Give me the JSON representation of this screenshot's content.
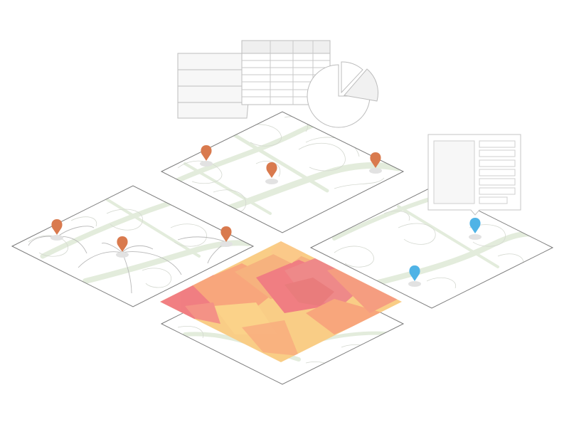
{
  "colors": {
    "background": "#ffffff",
    "tile_stroke": "#7a7a7a",
    "contour": "#d4d8d0",
    "road": "#e3ecdc",
    "pin_orange": "#d97a4e",
    "pin_blue": "#4fb3e6",
    "pin_shadow": "#e2e2e2",
    "heat_low": "#f9cd86",
    "heat_mid": "#f8a47c",
    "heat_high": "#f07a82",
    "heat_peak": "#e8787c",
    "chart_stroke": "#bdbdbd",
    "chart_fill": "#f5f5f5"
  },
  "icons": {
    "pin": "map-pin-icon",
    "table": "table-icon",
    "pie": "pie-chart-icon",
    "folded_paper": "folded-map-icon",
    "info_panel": "info-panel-icon"
  },
  "layers": [
    {
      "name": "top-map-tile",
      "pins": 3,
      "pin_color": "orange"
    },
    {
      "name": "left-map-tile",
      "pins": 3,
      "pin_color": "orange",
      "has_connections": true
    },
    {
      "name": "right-map-tile",
      "pins": 2,
      "pin_color": "blue",
      "has_popup": true
    },
    {
      "name": "bottom-map-tile",
      "heatmap": true
    }
  ]
}
